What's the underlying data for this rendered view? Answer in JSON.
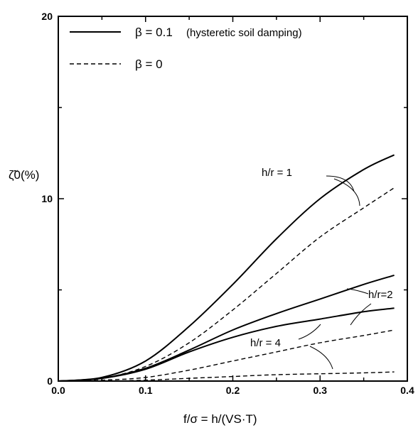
{
  "chart_data": {
    "type": "line",
    "xlim": [
      0.0,
      0.4
    ],
    "ylim": [
      0,
      20
    ],
    "x_ticks": [
      "0.0",
      "0.1",
      "0.2",
      "0.3",
      "0.4"
    ],
    "y_ticks": [
      "0",
      "10",
      "20"
    ],
    "grid": false,
    "legend_position": "top-left",
    "ylabel": "ζ̃0(%)",
    "xlabel": "f/σ = h/(VS·T)",
    "legend": [
      {
        "label": "β = 0.1",
        "note": "(hysteretic soil damping)",
        "style": "solid"
      },
      {
        "label": "β = 0",
        "note": "",
        "style": "dashed"
      }
    ],
    "series": [
      {
        "group": "h/r = 1",
        "style": "solid",
        "x": [
          0.0,
          0.05,
          0.1,
          0.15,
          0.2,
          0.25,
          0.3,
          0.35,
          0.385
        ],
        "y": [
          0.0,
          0.2,
          1.1,
          3.0,
          5.3,
          7.8,
          10.0,
          11.6,
          12.4
        ]
      },
      {
        "group": "h/r = 1",
        "style": "dashed",
        "x": [
          0.0,
          0.05,
          0.1,
          0.15,
          0.2,
          0.25,
          0.3,
          0.35,
          0.385
        ],
        "y": [
          0.0,
          0.15,
          0.8,
          2.1,
          3.9,
          5.9,
          7.9,
          9.5,
          10.6
        ]
      },
      {
        "group": "h/r = 2",
        "style": "solid",
        "x": [
          0.0,
          0.05,
          0.1,
          0.15,
          0.2,
          0.25,
          0.3,
          0.35,
          0.385
        ],
        "y": [
          0.0,
          0.15,
          0.7,
          1.7,
          2.8,
          3.7,
          4.5,
          5.3,
          5.8
        ]
      },
      {
        "group": "h/r = 4",
        "style": "solid",
        "x": [
          0.0,
          0.05,
          0.1,
          0.15,
          0.2,
          0.25,
          0.3,
          0.35,
          0.385
        ],
        "y": [
          0.0,
          0.15,
          0.65,
          1.6,
          2.4,
          3.0,
          3.4,
          3.8,
          4.0
        ]
      },
      {
        "group": "h/r = 2",
        "style": "dashed",
        "x": [
          0.0,
          0.05,
          0.1,
          0.15,
          0.2,
          0.25,
          0.3,
          0.35,
          0.385
        ],
        "y": [
          0.0,
          0.05,
          0.2,
          0.6,
          1.1,
          1.6,
          2.1,
          2.5,
          2.8
        ]
      },
      {
        "group": "h/r = 4",
        "style": "dashed",
        "x": [
          0.0,
          0.05,
          0.1,
          0.15,
          0.2,
          0.25,
          0.3,
          0.35,
          0.385
        ],
        "y": [
          0.0,
          0.0,
          0.05,
          0.15,
          0.25,
          0.35,
          0.4,
          0.45,
          0.5
        ]
      }
    ],
    "annotations": [
      {
        "text": "h/r = 1"
      },
      {
        "text": "h/r=2"
      },
      {
        "text": "h/r = 4"
      }
    ]
  }
}
